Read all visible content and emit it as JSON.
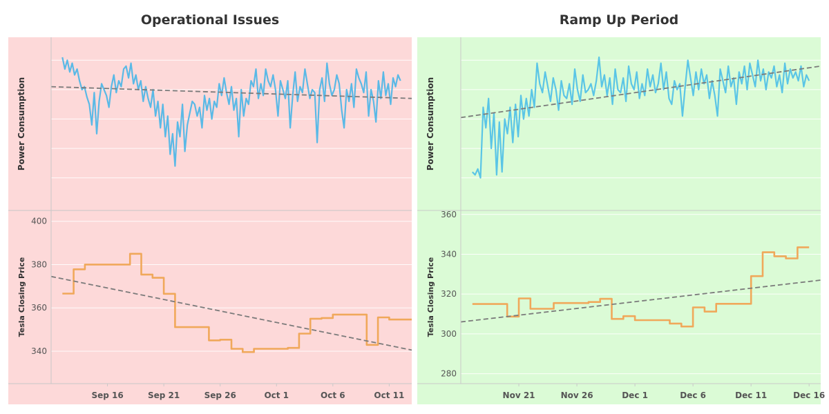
{
  "chart_data": [
    {
      "title": "Operational Issues",
      "background_color": "#fdd9d9",
      "power_color": "#5ab9e6",
      "price_color": "#f0a85a",
      "trend_color": "#7a7a7a",
      "grid": true,
      "x_ticks": [
        "Sep 16",
        "Sep 21",
        "Sep 26",
        "Oct 1",
        "Oct 6",
        "Oct 11"
      ],
      "x_tick_dates": [
        "2017-09-16",
        "2017-09-21",
        "2017-09-26",
        "2017-10-01",
        "2017-10-06",
        "2017-10-11"
      ],
      "x_range": [
        "2017-09-11",
        "2017-10-13"
      ],
      "top_panel": {
        "type": "line",
        "ylabel": "Power Consumption",
        "ylim": [
          0,
          100
        ],
        "series": [
          {
            "x_range": [
              "2017-09-12",
              "2017-10-12"
            ],
            "values": [
              92,
              84,
              90,
              82,
              88,
              80,
              84,
              76,
              70,
              72,
              65,
              60,
              46,
              68,
              40,
              62,
              74,
              70,
              66,
              58,
              72,
              80,
              68,
              76,
              72,
              84,
              86,
              78,
              88,
              74,
              80,
              70,
              76,
              62,
              72,
              64,
              58,
              70,
              52,
              62,
              44,
              60,
              38,
              52,
              26,
              40,
              18,
              48,
              38,
              60,
              28,
              46,
              54,
              62,
              60,
              52,
              58,
              44,
              66,
              56,
              64,
              50,
              62,
              58,
              74,
              66,
              78,
              68,
              60,
              72,
              56,
              64,
              38,
              70,
              52,
              64,
              60,
              76,
              72,
              84,
              64,
              74,
              66,
              84,
              76,
              72,
              80,
              70,
              52,
              76,
              70,
              64,
              76,
              44,
              66,
              82,
              62,
              72,
              68,
              84,
              74,
              64,
              70,
              68,
              34,
              70,
              78,
              62,
              88,
              74,
              66,
              70,
              80,
              74,
              56,
              44,
              70,
              62,
              74,
              58,
              84,
              78,
              74,
              68,
              82,
              52,
              70,
              62,
              48,
              76,
              64,
              82,
              66,
              74,
              60,
              78,
              72,
              80,
              76
            ]
          }
        ],
        "trend": [
          72,
          64
        ]
      },
      "bottom_panel": {
        "type": "line",
        "ylabel": "Tesla Closing Price",
        "ylim": [
          325,
          405
        ],
        "yticks": [
          340,
          360,
          380,
          400
        ],
        "series": [
          {
            "dates": [
              "2017-09-12",
              "2017-09-13",
              "2017-09-14",
              "2017-09-15",
              "2017-09-18",
              "2017-09-19",
              "2017-09-20",
              "2017-09-21",
              "2017-09-22",
              "2017-09-25",
              "2017-09-26",
              "2017-09-27",
              "2017-09-28",
              "2017-09-29",
              "2017-10-02",
              "2017-10-03",
              "2017-10-04",
              "2017-10-05",
              "2017-10-06",
              "2017-10-09",
              "2017-10-10",
              "2017-10-11",
              "2017-10-12"
            ],
            "values": [
              366.6,
              377.8,
              380.0,
              380.0,
              385.0,
              375.4,
              373.9,
              366.5,
              351.1,
              345.0,
              345.3,
              341.1,
              339.6,
              341.1,
              341.5,
              348.1,
              355.0,
              355.3,
              356.9,
              342.9,
              355.6,
              354.6,
              354.6
            ]
          }
        ],
        "trend": [
          374.5,
          340.5
        ]
      }
    },
    {
      "title": "Ramp Up Period",
      "background_color": "#dbfbd6",
      "power_color": "#5ac5e6",
      "price_color": "#f0a85a",
      "trend_color": "#7a7a7a",
      "grid": true,
      "x_ticks": [
        "Nov 21",
        "Nov 26",
        "Dec 1",
        "Dec 6",
        "Dec 11",
        "Dec 16"
      ],
      "x_tick_dates": [
        "2017-11-21",
        "2017-11-26",
        "2017-12-01",
        "2017-12-06",
        "2017-12-11",
        "2017-12-16"
      ],
      "x_range": [
        "2017-11-16",
        "2017-12-17"
      ],
      "top_panel": {
        "type": "line",
        "ylabel": "Power Consumption",
        "ylim": [
          0,
          100
        ],
        "series": [
          {
            "x_range": [
              "2017-11-17",
              "2017-12-16"
            ],
            "values": [
              14,
              12,
              16,
              10,
              58,
              44,
              64,
              30,
              54,
              12,
              48,
              14,
              50,
              40,
              58,
              34,
              60,
              38,
              66,
              50,
              64,
              52,
              70,
              58,
              88,
              74,
              68,
              82,
              72,
              62,
              78,
              70,
              56,
              76,
              66,
              64,
              74,
              60,
              84,
              70,
              62,
              80,
              68,
              70,
              74,
              66,
              76,
              92,
              72,
              80,
              66,
              78,
              60,
              84,
              70,
              68,
              78,
              62,
              86,
              74,
              70,
              82,
              64,
              74,
              66,
              84,
              72,
              80,
              68,
              74,
              88,
              70,
              82,
              64,
              60,
              76,
              70,
              74,
              52,
              72,
              90,
              78,
              66,
              82,
              70,
              84,
              74,
              80,
              64,
              76,
              66,
              52,
              84,
              76,
              68,
              86,
              72,
              78,
              60,
              82,
              74,
              86,
              70,
              88,
              80,
              72,
              90,
              76,
              84,
              70,
              82,
              78,
              86,
              72,
              80,
              68,
              88,
              74,
              84,
              78,
              82,
              76,
              86,
              72,
              80,
              76
            ]
          }
        ],
        "trend": [
          51,
          86
        ]
      },
      "bottom_panel": {
        "type": "line",
        "ylabel": "Tesla Closing Price",
        "ylim": [
          275,
          362
        ],
        "yticks": [
          280,
          300,
          320,
          340,
          360
        ],
        "series": [
          {
            "dates": [
              "2017-11-17",
              "2017-11-20",
              "2017-11-21",
              "2017-11-22",
              "2017-11-24",
              "2017-11-27",
              "2017-11-28",
              "2017-11-29",
              "2017-11-30",
              "2017-12-01",
              "2017-12-04",
              "2017-12-05",
              "2017-12-06",
              "2017-12-07",
              "2017-12-08",
              "2017-12-11",
              "2017-12-12",
              "2017-12-13",
              "2017-12-14",
              "2017-12-15"
            ],
            "values": [
              315.0,
              308.7,
              317.8,
              312.6,
              315.5,
              316.0,
              317.6,
              307.5,
              308.9,
              306.9,
              305.2,
              303.7,
              313.3,
              311.2,
              315.1,
              329.0,
              341.0,
              339.0,
              337.9,
              343.5
            ]
          }
        ],
        "trend": [
          306,
          327
        ]
      }
    }
  ]
}
